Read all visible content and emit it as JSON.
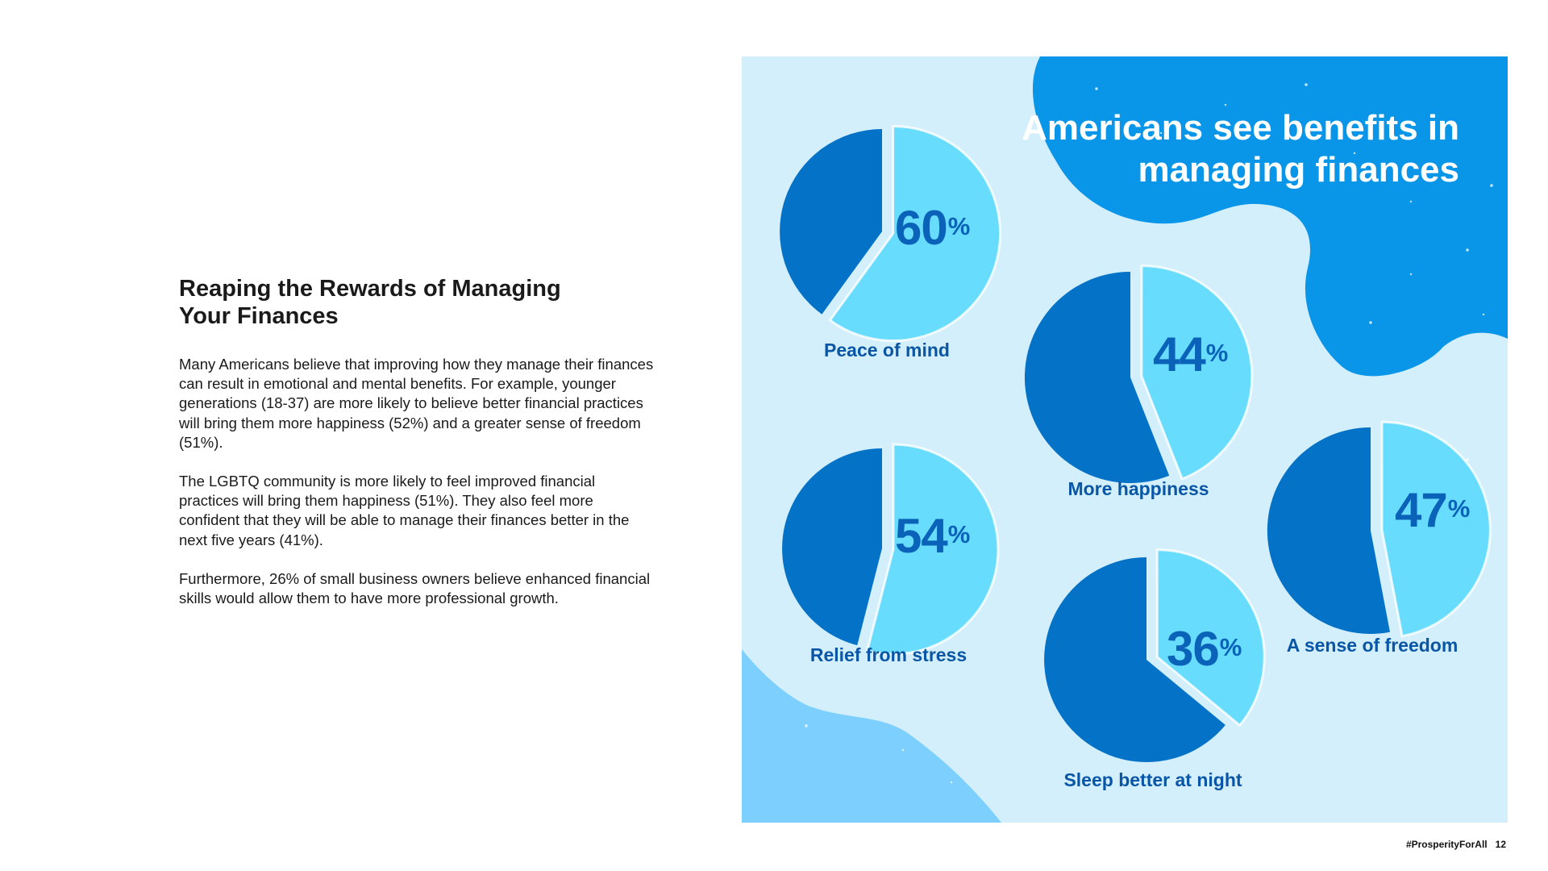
{
  "article": {
    "heading": "Reaping the Rewards of Managing Your Finances",
    "paragraphs": [
      "Many Americans believe that improving how they manage their finances can result in emotional and mental benefits. For example, younger generations (18-37) are more likely to believe better financial practices will bring them more happiness (52%) and a greater sense of freedom (51%).",
      "The LGBTQ community is more likely to feel improved financial practices will bring them happiness (51%). They also feel more confident that they will be able to manage their finances better in the next five years (41%).",
      "Furthermore, 26% of small business owners believe enhanced financial skills would allow them to have more professional growth."
    ]
  },
  "chart_data": {
    "type": "pie",
    "title": "Americans see benefits in managing finances",
    "unit": "%",
    "series": [
      {
        "label": "Peace of mind",
        "value": 60
      },
      {
        "label": "More happiness",
        "value": 44
      },
      {
        "label": "Relief from stress",
        "value": 54
      },
      {
        "label": "A sense of freedom",
        "value": 47
      },
      {
        "label": "Sleep better at night",
        "value": 36
      }
    ],
    "colors": {
      "highlight_slice": "#68dcfd",
      "remainder_slice": "#0472c7",
      "background": "#d3effb",
      "blob_dark": "#0996e8",
      "blob_light": "#7dd0fd",
      "value_text": "#0a63b8",
      "label_text": "#0a56a6"
    }
  },
  "footer": {
    "hashtag": "#ProsperityForAll",
    "page_number": "12"
  }
}
